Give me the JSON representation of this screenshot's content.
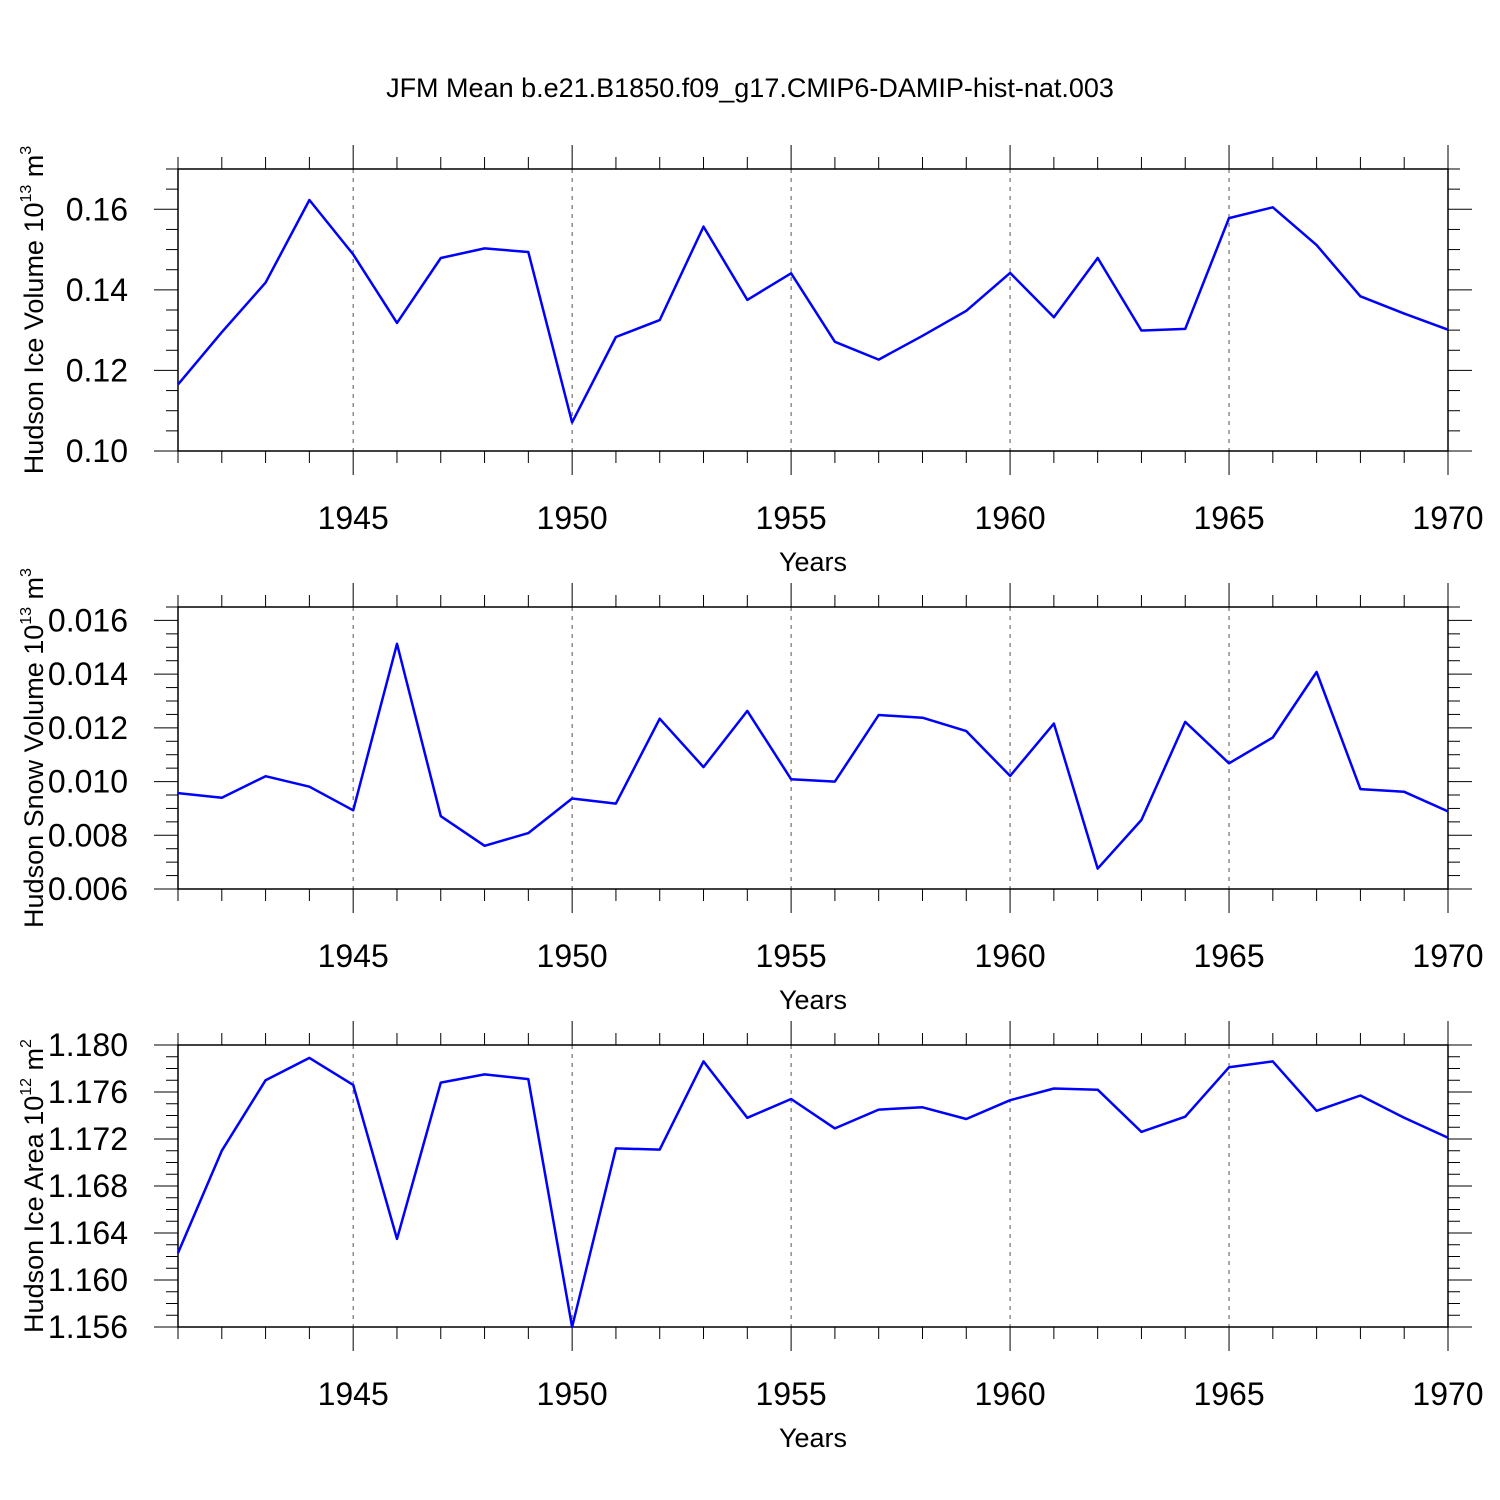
{
  "title": "JFM Mean b.e21.B1850.f09_g17.CMIP6-DAMIP-hist-nat.003",
  "chart_data": [
    {
      "type": "line",
      "ylabel": {
        "main": "Hudson Ice Volume 10",
        "sup": "13",
        "unit": " m",
        "unit_sup": "3"
      },
      "xlabel": "Years",
      "xlim": [
        1941,
        1970
      ],
      "ylim": [
        0.1,
        0.17
      ],
      "x_ticks": [
        1945,
        1950,
        1955,
        1960,
        1965,
        1970
      ],
      "y_ticks": [
        0.1,
        0.12,
        0.14,
        0.16
      ],
      "y_tick_labels": [
        "0.10",
        "0.12",
        "0.14",
        "0.16"
      ],
      "y_minor_step": 0.005,
      "grid": "vertical dashed at major x ticks",
      "line_color": "#0000ff",
      "x": [
        1941,
        1942,
        1943,
        1944,
        1945,
        1946,
        1947,
        1948,
        1949,
        1950,
        1951,
        1952,
        1953,
        1954,
        1955,
        1956,
        1957,
        1958,
        1959,
        1960,
        1961,
        1962,
        1963,
        1964,
        1965,
        1966,
        1967,
        1968,
        1969,
        1970
      ],
      "y": [
        0.1165,
        0.1295,
        0.1418,
        0.1623,
        0.1488,
        0.1318,
        0.1479,
        0.1503,
        0.1494,
        0.1071,
        0.1283,
        0.1325,
        0.1557,
        0.1375,
        0.1441,
        0.1271,
        0.1227,
        0.1286,
        0.1348,
        0.1442,
        0.1332,
        0.1479,
        0.1299,
        0.1303,
        0.1578,
        0.1605,
        0.1511,
        0.1384,
        0.1341,
        0.1301
      ]
    },
    {
      "type": "line",
      "ylabel": {
        "main": "Hudson Snow Volume 10",
        "sup": "13",
        "unit": " m",
        "unit_sup": "3"
      },
      "xlabel": "Years",
      "xlim": [
        1941,
        1970
      ],
      "ylim": [
        0.006,
        0.0165
      ],
      "x_ticks": [
        1945,
        1950,
        1955,
        1960,
        1965,
        1970
      ],
      "y_ticks": [
        0.006,
        0.008,
        0.01,
        0.012,
        0.014,
        0.016
      ],
      "y_tick_labels": [
        "0.006",
        "0.008",
        "0.010",
        "0.012",
        "0.014",
        "0.016"
      ],
      "y_minor_step": 0.0005,
      "grid": "vertical dashed at major x ticks",
      "line_color": "#0000ff",
      "x": [
        1941,
        1942,
        1943,
        1944,
        1945,
        1946,
        1947,
        1948,
        1949,
        1950,
        1951,
        1952,
        1953,
        1954,
        1955,
        1956,
        1957,
        1958,
        1959,
        1960,
        1961,
        1962,
        1963,
        1964,
        1965,
        1966,
        1967,
        1968,
        1969,
        1970
      ],
      "y": [
        0.00957,
        0.0094,
        0.0102,
        0.00981,
        0.00893,
        0.01513,
        0.00871,
        0.00761,
        0.00808,
        0.00937,
        0.00918,
        0.01234,
        0.01054,
        0.01263,
        0.01009,
        0.01,
        0.01248,
        0.01238,
        0.01188,
        0.01021,
        0.01216,
        0.00676,
        0.00857,
        0.01222,
        0.01068,
        0.01164,
        0.01408,
        0.00972,
        0.00962,
        0.00889
      ]
    },
    {
      "type": "line",
      "ylabel": {
        "main": "Hudson Ice Area 10",
        "sup": "12",
        "unit": " m",
        "unit_sup": "2"
      },
      "xlabel": "Years",
      "xlim": [
        1941,
        1970
      ],
      "ylim": [
        1.156,
        1.18
      ],
      "x_ticks": [
        1945,
        1950,
        1955,
        1960,
        1965,
        1970
      ],
      "y_ticks": [
        1.156,
        1.16,
        1.164,
        1.168,
        1.172,
        1.176,
        1.18
      ],
      "y_tick_labels": [
        "1.156",
        "1.160",
        "1.164",
        "1.168",
        "1.172",
        "1.176",
        "1.180"
      ],
      "y_minor_step": 0.001,
      "grid": "vertical dashed at major x ticks",
      "line_color": "#0000ff",
      "x": [
        1941,
        1942,
        1943,
        1944,
        1945,
        1946,
        1947,
        1948,
        1949,
        1950,
        1951,
        1952,
        1953,
        1954,
        1955,
        1956,
        1957,
        1958,
        1959,
        1960,
        1961,
        1962,
        1963,
        1964,
        1965,
        1966,
        1967,
        1968,
        1969,
        1970
      ],
      "y": [
        1.1623,
        1.171,
        1.177,
        1.1789,
        1.1766,
        1.1635,
        1.1768,
        1.1775,
        1.1771,
        1.156,
        1.1712,
        1.1711,
        1.1786,
        1.1738,
        1.1754,
        1.1729,
        1.1745,
        1.1747,
        1.1737,
        1.1753,
        1.1763,
        1.1762,
        1.1726,
        1.1739,
        1.1781,
        1.1786,
        1.1744,
        1.1757,
        1.1738,
        1.1721
      ]
    }
  ]
}
